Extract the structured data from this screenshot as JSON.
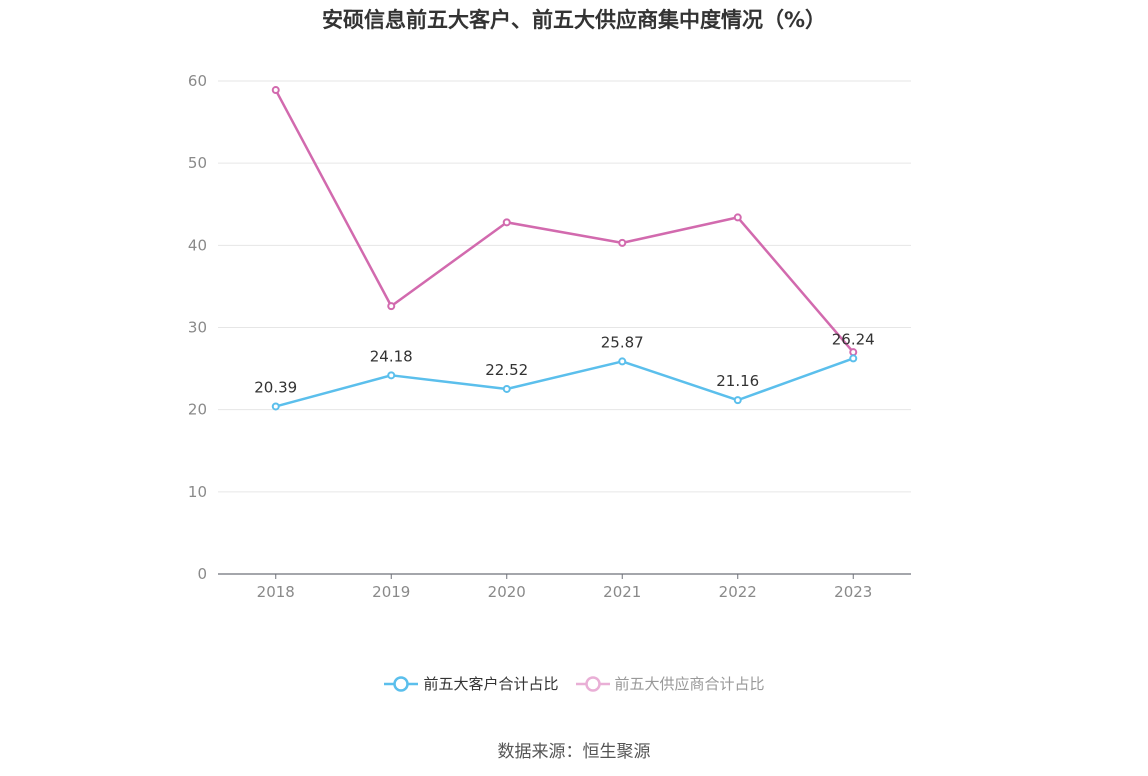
{
  "chart_data": {
    "type": "line",
    "title": "安硕信息前五大客户、前五大供应商集中度情况（%）",
    "categories": [
      "2018",
      "2019",
      "2020",
      "2021",
      "2022",
      "2023"
    ],
    "ylim": [
      0,
      60
    ],
    "yticks": [
      0,
      10,
      20,
      30,
      40,
      50,
      60
    ],
    "grid": true,
    "legend_position": "bottom",
    "series": [
      {
        "name": "前五大客户合计占比",
        "values": [
          20.39,
          24.18,
          22.52,
          25.87,
          21.16,
          26.24
        ],
        "color": "#5bbfec",
        "labels": [
          "20.39",
          "24.18",
          "22.52",
          "25.87",
          "21.16",
          "26.24"
        ]
      },
      {
        "name": "前五大供应商合计占比",
        "values": [
          58.9,
          32.6,
          42.8,
          40.3,
          43.4,
          27.0
        ],
        "color": "#d26aae",
        "legend_color": "#e9afd6"
      }
    ]
  },
  "source": "数据来源：恒生聚源"
}
